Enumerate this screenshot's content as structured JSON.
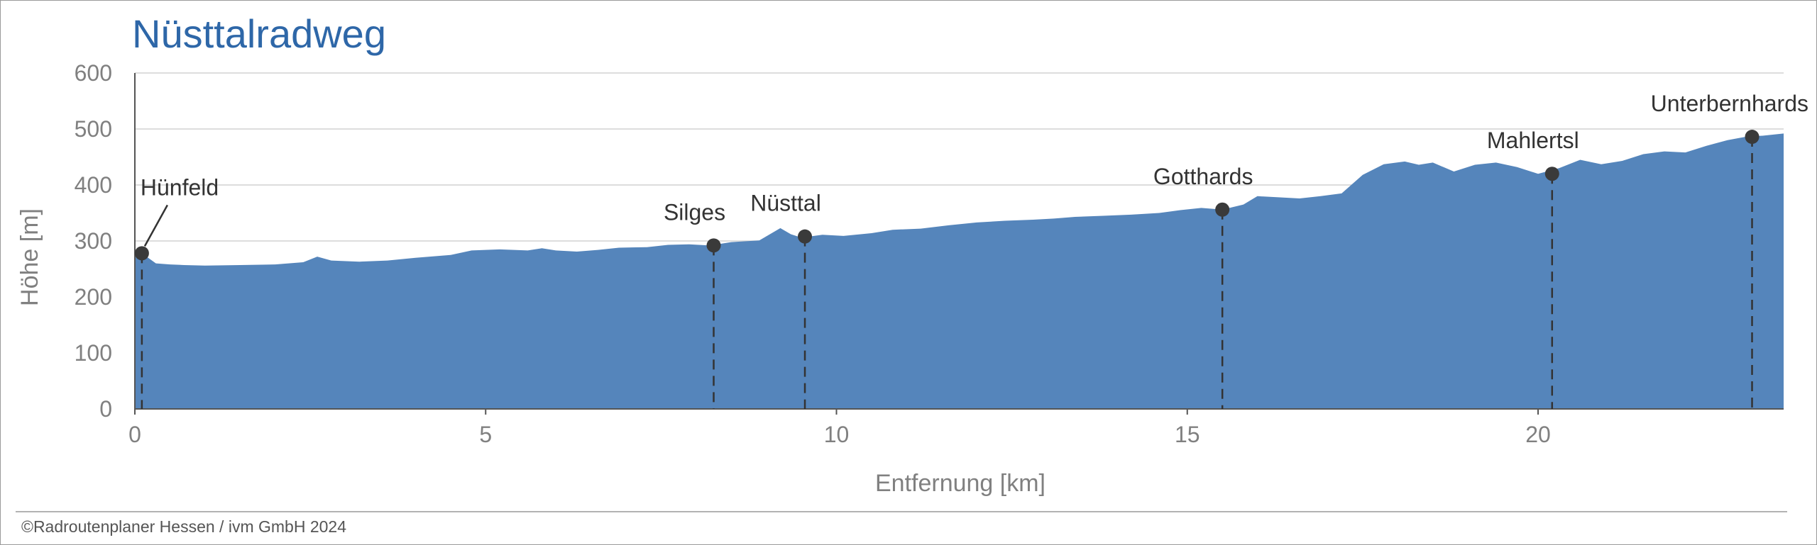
{
  "chart_data": {
    "type": "area",
    "title": "Nüsttalradweg",
    "xlabel": "Entfernung [km]",
    "ylabel": "Höhe [m]",
    "xlim": [
      0,
      23.5
    ],
    "ylim": [
      0,
      600
    ],
    "x_ticks": [
      0,
      5,
      10,
      15,
      20
    ],
    "y_ticks": [
      0,
      100,
      200,
      300,
      400,
      500,
      600
    ],
    "grid": "horizontal",
    "fill_color": "#5585bb",
    "profile": {
      "x": [
        0,
        0.1,
        0.3,
        0.5,
        0.7,
        1.0,
        1.5,
        2.0,
        2.4,
        2.6,
        2.8,
        3.2,
        3.6,
        4.0,
        4.5,
        4.8,
        5.0,
        5.2,
        5.6,
        5.8,
        6.0,
        6.3,
        6.6,
        6.9,
        7.3,
        7.6,
        7.9,
        8.2,
        8.5,
        8.9,
        9.2,
        9.35,
        9.5,
        9.8,
        10.1,
        10.5,
        10.8,
        11.2,
        11.6,
        12.0,
        12.4,
        12.8,
        13.1,
        13.4,
        13.8,
        14.2,
        14.6,
        14.9,
        15.2,
        15.5,
        15.8,
        16.0,
        16.3,
        16.6,
        16.9,
        17.2,
        17.5,
        17.8,
        18.1,
        18.3,
        18.5,
        18.8,
        19.1,
        19.4,
        19.7,
        20.0,
        20.3,
        20.6,
        20.9,
        21.2,
        21.5,
        21.8,
        22.1,
        22.4,
        22.7,
        23.0,
        23.2,
        23.5
      ],
      "y": [
        272,
        278,
        260,
        258,
        257,
        256,
        257,
        258,
        262,
        272,
        265,
        263,
        265,
        270,
        275,
        283,
        284,
        285,
        283,
        287,
        283,
        281,
        284,
        288,
        289,
        293,
        294,
        292,
        298,
        301,
        323,
        312,
        306,
        311,
        309,
        314,
        320,
        322,
        328,
        333,
        336,
        338,
        340,
        343,
        345,
        347,
        350,
        355,
        359,
        356,
        365,
        380,
        378,
        376,
        380,
        385,
        418,
        437,
        442,
        436,
        440,
        424,
        436,
        440,
        432,
        420,
        430,
        445,
        437,
        443,
        455,
        460,
        458,
        470,
        480,
        487,
        488,
        492
      ]
    },
    "waypoints": [
      {
        "name": "Hünfeld",
        "x": 0.1,
        "y": 278
      },
      {
        "name": "Silges",
        "x": 8.25,
        "y": 292
      },
      {
        "name": "Nüsttal",
        "x": 9.55,
        "y": 308
      },
      {
        "name": "Gotthards",
        "x": 15.5,
        "y": 356
      },
      {
        "name": "Mahlertsl",
        "x": 20.2,
        "y": 420
      },
      {
        "name": "Unterbernhards",
        "x": 23.05,
        "y": 486
      }
    ]
  },
  "footer": {
    "credit": "©Radroutenplaner Hessen / ivm GmbH 2024"
  }
}
